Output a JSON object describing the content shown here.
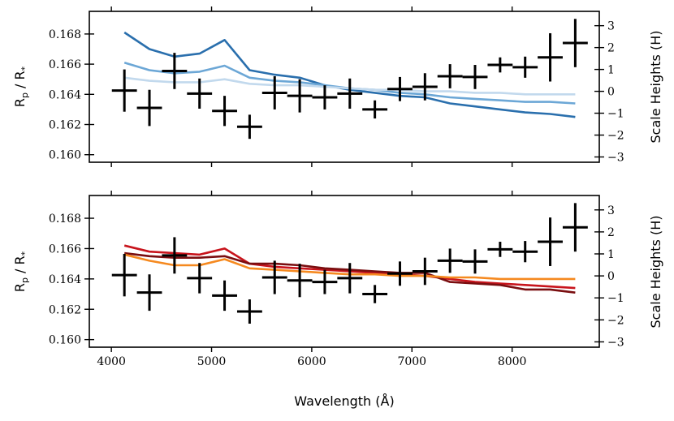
{
  "chart_data": {
    "type": "line",
    "xlabel": "Wavelength (Å)",
    "x_ticks": [
      "4000",
      "5000",
      "6000",
      "7000",
      "8000"
    ],
    "xlim": [
      3780,
      8870
    ],
    "panels": [
      {
        "name": "top",
        "ylabel_main": "R",
        "ylabel_sub": "p",
        "ylabel_sep": " / R",
        "ylabel_sub2": "*",
        "ylabel_right": "Scale Heights (H)",
        "ylim": [
          0.1595,
          0.1695
        ],
        "y_ticks": [
          "0.160",
          "0.162",
          "0.164",
          "0.166",
          "0.168"
        ],
        "right_ticks": [
          "3",
          "2",
          "1",
          "0",
          "−1",
          "−2",
          "−3"
        ],
        "right_tick_values": [
          3,
          2,
          1,
          0,
          -1,
          -2,
          -3
        ],
        "right_zero": 0.1642,
        "right_scale": 0.00145,
        "series": [
          {
            "name": "model-dark-blue",
            "color": "#2a6fad",
            "x": [
              4130,
              4380,
              4630,
              4880,
              5130,
              5380,
              5630,
              5880,
              6130,
              6380,
              6630,
              6880,
              7130,
              7380,
              7630,
              7880,
              8130,
              8380,
              8630
            ],
            "y": [
              0.1681,
              0.167,
              0.1665,
              0.1667,
              0.1676,
              0.1656,
              0.1653,
              0.1651,
              0.1646,
              0.1643,
              0.1641,
              0.1639,
              0.1638,
              0.1634,
              0.1632,
              0.163,
              0.1628,
              0.1627,
              0.1625
            ]
          },
          {
            "name": "model-medium-blue",
            "color": "#6ca7d6",
            "x": [
              4130,
              4380,
              4630,
              4880,
              5130,
              5380,
              5630,
              5880,
              6130,
              6380,
              6630,
              6880,
              7130,
              7380,
              7630,
              7880,
              8130,
              8380,
              8630
            ],
            "y": [
              0.1661,
              0.1656,
              0.1654,
              0.1655,
              0.1659,
              0.1651,
              0.1649,
              0.1648,
              0.1646,
              0.1644,
              0.1643,
              0.1641,
              0.164,
              0.1638,
              0.1637,
              0.1636,
              0.1635,
              0.1635,
              0.1634
            ]
          },
          {
            "name": "model-light-blue",
            "color": "#c2d9ed",
            "x": [
              4130,
              4380,
              4630,
              4880,
              5130,
              5380,
              5630,
              5880,
              6130,
              6380,
              6630,
              6880,
              7130,
              7380,
              7630,
              7880,
              8130,
              8380,
              8630
            ],
            "y": [
              0.1651,
              0.1649,
              0.1648,
              0.1648,
              0.165,
              0.1647,
              0.1646,
              0.1646,
              0.1645,
              0.1644,
              0.1643,
              0.1643,
              0.1642,
              0.1642,
              0.1641,
              0.1641,
              0.164,
              0.164,
              0.164
            ]
          }
        ]
      },
      {
        "name": "bottom",
        "ylabel_main": "R",
        "ylabel_sub": "p",
        "ylabel_sep": " / R",
        "ylabel_sub2": "*",
        "ylabel_right": "Scale Heights (H)",
        "ylim": [
          0.1595,
          0.1695
        ],
        "y_ticks": [
          "0.160",
          "0.162",
          "0.164",
          "0.166",
          "0.168"
        ],
        "right_ticks": [
          "3",
          "2",
          "1",
          "0",
          "−1",
          "−2",
          "−3"
        ],
        "right_tick_values": [
          3,
          2,
          1,
          0,
          -1,
          -2,
          -3
        ],
        "right_zero": 0.1642,
        "right_scale": 0.00145,
        "series": [
          {
            "name": "model-red",
            "color": "#c8141c",
            "x": [
              4130,
              4380,
              4630,
              4880,
              5130,
              5380,
              5630,
              5880,
              6130,
              6380,
              6630,
              6880,
              7130,
              7380,
              7630,
              7880,
              8130,
              8380,
              8630
            ],
            "y": [
              0.1662,
              0.1658,
              0.1657,
              0.1656,
              0.166,
              0.165,
              0.1648,
              0.1647,
              0.1646,
              0.1645,
              0.1644,
              0.1643,
              0.1642,
              0.164,
              0.1638,
              0.1637,
              0.1636,
              0.1635,
              0.1634
            ]
          },
          {
            "name": "model-dark-red",
            "color": "#7a0e10",
            "x": [
              4130,
              4380,
              4630,
              4880,
              5130,
              5380,
              5630,
              5880,
              6130,
              6380,
              6630,
              6880,
              7130,
              7380,
              7630,
              7880,
              8130,
              8380,
              8630
            ],
            "y": [
              0.1657,
              0.1655,
              0.1654,
              0.1654,
              0.1655,
              0.165,
              0.165,
              0.1649,
              0.1647,
              0.1646,
              0.1645,
              0.1644,
              0.1644,
              0.1638,
              0.1637,
              0.1636,
              0.1633,
              0.1633,
              0.1631
            ]
          },
          {
            "name": "model-orange",
            "color": "#f5891f",
            "x": [
              4130,
              4380,
              4630,
              4880,
              5130,
              5380,
              5630,
              5880,
              6130,
              6380,
              6630,
              6880,
              7130,
              7380,
              7630,
              7880,
              8130,
              8380,
              8630
            ],
            "y": [
              0.1656,
              0.1652,
              0.1649,
              0.1649,
              0.1653,
              0.1647,
              0.1646,
              0.1645,
              0.1644,
              0.1643,
              0.1643,
              0.1642,
              0.1642,
              0.1641,
              0.1641,
              0.164,
              0.164,
              0.164,
              0.164
            ]
          }
        ]
      }
    ],
    "observations": {
      "color": "#000000",
      "points": [
        {
          "x": 4130,
          "y": 0.16425,
          "xerr": 125,
          "yerr": 0.0014
        },
        {
          "x": 4380,
          "y": 0.1631,
          "xerr": 125,
          "yerr": 0.0012
        },
        {
          "x": 4630,
          "y": 0.16555,
          "xerr": 125,
          "yerr": 0.0012
        },
        {
          "x": 4880,
          "y": 0.16405,
          "xerr": 125,
          "yerr": 0.001
        },
        {
          "x": 5130,
          "y": 0.1629,
          "xerr": 125,
          "yerr": 0.001
        },
        {
          "x": 5380,
          "y": 0.16185,
          "xerr": 125,
          "yerr": 0.0008
        },
        {
          "x": 5630,
          "y": 0.1641,
          "xerr": 125,
          "yerr": 0.0011
        },
        {
          "x": 5880,
          "y": 0.1639,
          "xerr": 125,
          "yerr": 0.0011
        },
        {
          "x": 6130,
          "y": 0.1638,
          "xerr": 125,
          "yerr": 0.0008
        },
        {
          "x": 6380,
          "y": 0.16405,
          "xerr": 125,
          "yerr": 0.001
        },
        {
          "x": 6630,
          "y": 0.163,
          "xerr": 125,
          "yerr": 0.0006
        },
        {
          "x": 6880,
          "y": 0.16435,
          "xerr": 125,
          "yerr": 0.0008
        },
        {
          "x": 7130,
          "y": 0.1645,
          "xerr": 125,
          "yerr": 0.0009
        },
        {
          "x": 7380,
          "y": 0.1652,
          "xerr": 125,
          "yerr": 0.0008
        },
        {
          "x": 7630,
          "y": 0.16515,
          "xerr": 125,
          "yerr": 0.0008
        },
        {
          "x": 7880,
          "y": 0.16595,
          "xerr": 125,
          "yerr": 0.0005
        },
        {
          "x": 8130,
          "y": 0.1658,
          "xerr": 125,
          "yerr": 0.0007
        },
        {
          "x": 8380,
          "y": 0.16645,
          "xerr": 125,
          "yerr": 0.0016
        },
        {
          "x": 8630,
          "y": 0.1674,
          "xerr": 125,
          "yerr": 0.0016
        }
      ]
    }
  }
}
